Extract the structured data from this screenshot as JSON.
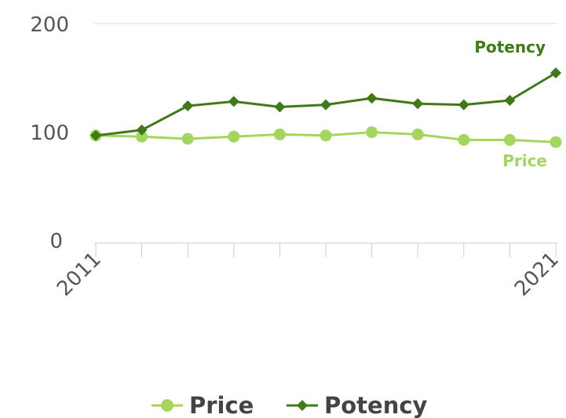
{
  "chart_data": {
    "type": "line",
    "x": [
      2011,
      2012,
      2013,
      2014,
      2015,
      2016,
      2017,
      2018,
      2019,
      2020,
      2021
    ],
    "x_tick_labels": [
      "2011",
      "2021"
    ],
    "ylim": [
      0,
      200
    ],
    "y_ticks": [
      0,
      100,
      200
    ],
    "series": [
      {
        "name": "Price",
        "color": "#a4d65e",
        "marker": "circle",
        "values": [
          98,
          97,
          95,
          97,
          99,
          98,
          101,
          99,
          94,
          94,
          92
        ]
      },
      {
        "name": "Potency",
        "color": "#3f7a16",
        "marker": "diamond",
        "values": [
          98,
          103,
          125,
          129,
          124,
          126,
          132,
          127,
          126,
          130,
          155
        ]
      }
    ],
    "end_labels": [
      "Potency",
      "Price"
    ],
    "legend": {
      "position": "bottom",
      "items": [
        "Price",
        "Potency"
      ]
    },
    "grid": "horizontal"
  }
}
